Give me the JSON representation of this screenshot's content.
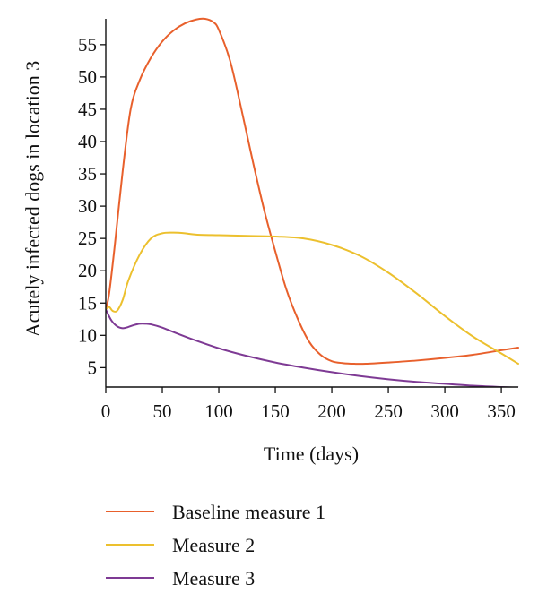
{
  "chart_data": {
    "type": "line",
    "title": "",
    "xlabel": "Time (days)",
    "ylabel": "Acutely infected dogs in location 3",
    "xlim": [
      0,
      365
    ],
    "ylim": [
      2,
      59
    ],
    "xticks": [
      0,
      50,
      100,
      150,
      200,
      250,
      300,
      350
    ],
    "yticks": [
      5,
      10,
      15,
      20,
      25,
      30,
      35,
      40,
      45,
      50,
      55
    ],
    "grid": false,
    "legend_position": "bottom",
    "series": [
      {
        "name": "Baseline measure 1",
        "color": "#e8602c",
        "x": [
          0,
          3,
          8,
          15,
          22,
          30,
          40,
          50,
          60,
          70,
          80,
          88,
          95,
          100,
          110,
          120,
          130,
          140,
          150,
          160,
          170,
          180,
          190,
          200,
          210,
          220,
          230,
          250,
          275,
          300,
          325,
          350,
          365
        ],
        "y": [
          14,
          16.5,
          24,
          35.5,
          45,
          49.5,
          53,
          55.5,
          57.2,
          58.3,
          58.9,
          59,
          58.5,
          57.3,
          52.5,
          45,
          37,
          29.5,
          23,
          17,
          12.5,
          9,
          7,
          6,
          5.7,
          5.6,
          5.6,
          5.8,
          6.1,
          6.5,
          7,
          7.7,
          8.1
        ]
      },
      {
        "name": "Measure 2",
        "color": "#ecc02e",
        "x": [
          0,
          3,
          6,
          10,
          15,
          20,
          30,
          40,
          50,
          60,
          70,
          80,
          100,
          125,
          150,
          175,
          200,
          225,
          250,
          275,
          300,
          325,
          350,
          365
        ],
        "y": [
          14,
          14.4,
          13.8,
          13.8,
          15.5,
          18.5,
          22.5,
          25,
          25.8,
          25.9,
          25.8,
          25.6,
          25.5,
          25.4,
          25.3,
          25,
          24,
          22.3,
          19.7,
          16.5,
          13,
          9.8,
          7.2,
          5.6
        ]
      },
      {
        "name": "Measure 3",
        "color": "#7e3a94",
        "x": [
          0,
          5,
          10,
          15,
          20,
          25,
          30,
          35,
          40,
          50,
          60,
          75,
          100,
          125,
          150,
          175,
          200,
          225,
          250,
          275,
          300,
          325,
          350,
          365
        ],
        "y": [
          14,
          12.3,
          11.4,
          11.1,
          11.3,
          11.6,
          11.8,
          11.8,
          11.7,
          11.2,
          10.5,
          9.5,
          8,
          6.8,
          5.8,
          5,
          4.3,
          3.7,
          3.2,
          2.8,
          2.5,
          2.2,
          2,
          1.9
        ]
      }
    ]
  }
}
